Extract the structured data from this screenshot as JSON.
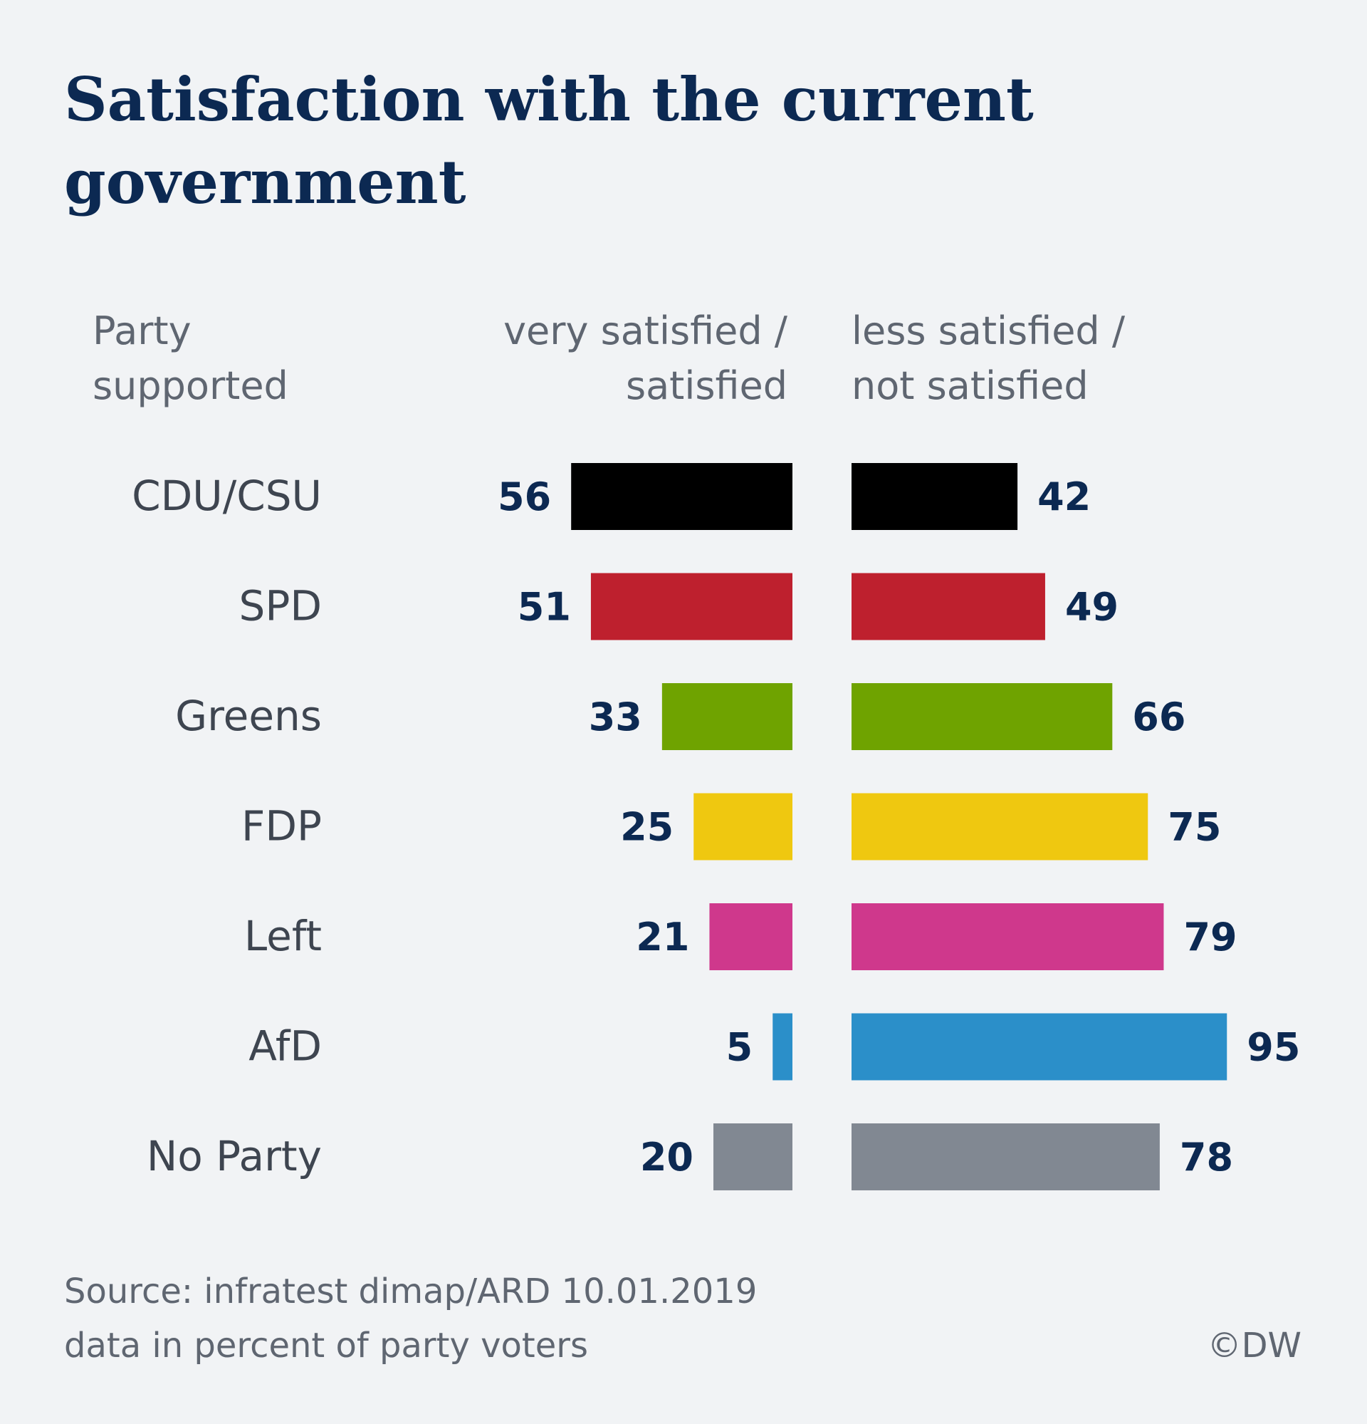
{
  "title": "Satisfaction with the current government",
  "headers": {
    "party": [
      "Party",
      "supported"
    ],
    "satisfied": [
      "very satisfied /",
      "satisfied"
    ],
    "not_satisfied": [
      "less satisfied /",
      "not satisfied"
    ]
  },
  "footer": {
    "source": "Source: infratest dimap/ARD 10.01.2019",
    "note": "data in percent of party voters",
    "copyright": "©DW"
  },
  "chart_data": {
    "type": "bar",
    "orientation": "horizontal-diverging",
    "categories": [
      "CDU/CSU",
      "SPD",
      "Greens",
      "FDP",
      "Left",
      "AfD",
      "No Party"
    ],
    "colors": [
      "#000000",
      "#be202e",
      "#6fa300",
      "#efc810",
      "#cf388c",
      "#2b8fc9",
      "#818892"
    ],
    "series": [
      {
        "name": "very satisfied / satisfied",
        "values": [
          56,
          51,
          33,
          25,
          21,
          5,
          20
        ]
      },
      {
        "name": "less satisfied / not satisfied",
        "values": [
          42,
          49,
          66,
          75,
          79,
          95,
          78
        ]
      }
    ]
  }
}
